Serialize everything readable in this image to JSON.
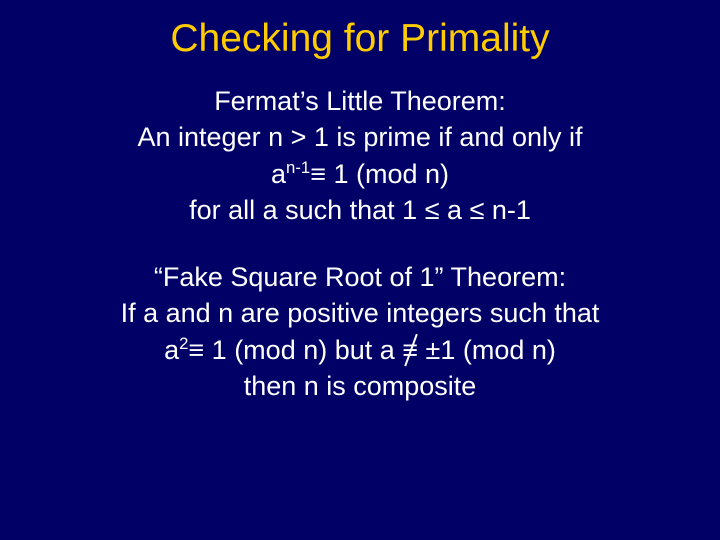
{
  "colors": {
    "background": "#000066",
    "title": "#ffcc00",
    "body": "#ffffff"
  },
  "typography": {
    "font_family": "Comic Sans MS",
    "title_fontsize": 39,
    "body_fontsize": 27
  },
  "title": "Checking for Primality",
  "block1": {
    "line1": "Fermat’s Little Theorem:",
    "line2": "An integer n > 1 is prime if and only if",
    "line3_a": "a",
    "line3_exp": "n-1",
    "line3_equiv": "≡",
    "line3_rest": " 1 (mod n)",
    "line4_a": "for all a such that 1 ",
    "line4_le1": "≤",
    "line4_mid": " a ",
    "line4_le2": "≤",
    "line4_end": " n-1"
  },
  "block2": {
    "line1": "“Fake Square Root of 1” Theorem:",
    "line2": "If a and n are positive integers such that",
    "line3_a": "a",
    "line3_exp": "2",
    "line3_equiv": "≡",
    "line3_mid": " 1 (mod n) but a ",
    "line3_nequiv": "≡",
    "line3_pm": " ±",
    "line3_end": "1 (mod n)",
    "line4": "then n is composite"
  }
}
